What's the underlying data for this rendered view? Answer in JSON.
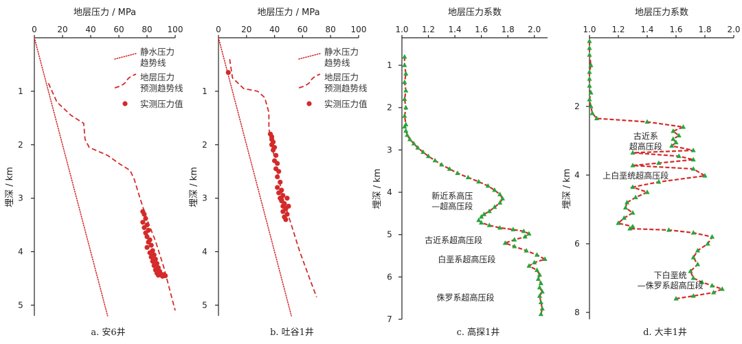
{
  "colors": {
    "curve": "#d42a2a",
    "marker": "#27a63a",
    "point": "#d42a2a",
    "axis": "#222222"
  },
  "legend": {
    "hydro": [
      "静水压力",
      "趋势线"
    ],
    "formation": [
      "地层压力",
      "预测趋势线"
    ],
    "measured": "实测压力值"
  },
  "chart_data": [
    {
      "type": "line",
      "caption": "a. 安6井",
      "xlabel": "地层压力 / MPa",
      "ylabel": "埋深 / km",
      "xlim": [
        0,
        100
      ],
      "ylim": [
        0,
        5.2
      ],
      "x_ticks": [
        "0",
        "20",
        "40",
        "60",
        "80",
        "100"
      ],
      "y_ticks": [
        "1",
        "2",
        "3",
        "4",
        "5"
      ],
      "x_tick_values": [
        0,
        20,
        40,
        60,
        80,
        100
      ],
      "y_tick_values": [
        1,
        2,
        3,
        4,
        5
      ],
      "series": [
        {
          "name": "静水压力趋势线",
          "style": "dotted",
          "x": [
            0,
            52
          ],
          "y": [
            0,
            5.2
          ]
        },
        {
          "name": "地层压力预测趋势线",
          "style": "dashed",
          "x": [
            10,
            16,
            26,
            35,
            36,
            39,
            52,
            60,
            68,
            71,
            75,
            80,
            86,
            92,
            97,
            100
          ],
          "y": [
            0.85,
            1.2,
            1.45,
            1.6,
            1.9,
            2.05,
            2.2,
            2.35,
            2.48,
            2.65,
            3.0,
            3.4,
            3.8,
            4.3,
            4.8,
            5.1
          ]
        },
        {
          "name": "实测压力值",
          "style": "points",
          "x": [
            77,
            78,
            79,
            77,
            80,
            78,
            81,
            79,
            80,
            82,
            81,
            83,
            80,
            84,
            82,
            85,
            83,
            86,
            84,
            87,
            85,
            88,
            86,
            89,
            87,
            90,
            88,
            91,
            92,
            93
          ],
          "y": [
            3.25,
            3.3,
            3.38,
            3.45,
            3.5,
            3.55,
            3.6,
            3.65,
            3.72,
            3.78,
            3.82,
            3.88,
            3.92,
            3.98,
            4.02,
            4.06,
            4.1,
            4.14,
            4.18,
            4.22,
            4.26,
            4.3,
            4.34,
            4.37,
            4.4,
            4.42,
            4.44,
            4.46,
            4.43,
            4.45
          ]
        }
      ]
    },
    {
      "type": "line",
      "caption": "b. 吐谷1井",
      "xlabel": "地层压力 / MPa",
      "ylabel": "埋深 / km",
      "xlim": [
        0,
        100
      ],
      "ylim": [
        0,
        5.2
      ],
      "x_ticks": [
        "0",
        "20",
        "40",
        "60",
        "80",
        "100"
      ],
      "y_ticks": [
        "1",
        "2",
        "3",
        "4",
        "5"
      ],
      "x_tick_values": [
        0,
        20,
        40,
        60,
        80,
        100
      ],
      "y_tick_values": [
        1,
        2,
        3,
        4,
        5
      ],
      "series": [
        {
          "name": "静水压力趋势线",
          "style": "dotted",
          "x": [
            0,
            52
          ],
          "y": [
            0,
            5.2
          ]
        },
        {
          "name": "地层压力预测趋势线",
          "style": "dashed",
          "x": [
            8,
            10,
            18,
            28,
            33,
            36,
            36,
            38,
            42,
            46,
            52,
            58,
            65,
            70
          ],
          "y": [
            0.4,
            0.75,
            0.95,
            1.0,
            1.12,
            1.4,
            1.7,
            2.0,
            2.5,
            3.0,
            3.5,
            4.0,
            4.5,
            4.85
          ]
        },
        {
          "name": "实测压力值",
          "style": "points",
          "x": [
            7,
            37,
            38,
            38,
            39,
            38,
            40,
            39,
            41,
            40,
            42,
            41,
            43,
            42,
            44,
            42,
            45,
            43,
            46,
            44,
            45,
            47,
            46,
            48,
            46,
            49,
            47,
            48,
            50,
            49
          ],
          "y": [
            0.65,
            1.8,
            1.85,
            1.9,
            1.95,
            2.0,
            2.05,
            2.1,
            2.2,
            2.3,
            2.35,
            2.45,
            2.5,
            2.6,
            2.7,
            2.8,
            2.85,
            2.9,
            2.95,
            3.0,
            3.05,
            3.1,
            3.15,
            3.2,
            3.25,
            3.3,
            3.35,
            3.4,
            3.15,
            3.0
          ]
        }
      ]
    },
    {
      "type": "line",
      "caption": "c. 高探1井",
      "xlabel": "地层压力系数",
      "ylabel": "埋深 / km",
      "xlim": [
        1.0,
        2.1
      ],
      "ylim": [
        0.35,
        7.0
      ],
      "x_ticks": [
        "1.0",
        "1.2",
        "1.4",
        "1.6",
        "1.8",
        "2.0"
      ],
      "y_ticks": [
        "1",
        "2",
        "3",
        "4",
        "5",
        "6",
        "7"
      ],
      "x_tick_values": [
        1.0,
        1.2,
        1.4,
        1.6,
        1.8,
        2.0
      ],
      "y_tick_values": [
        1,
        2,
        3,
        4,
        5,
        6,
        7
      ],
      "series": [
        {
          "name": "地层压力系数",
          "style": "dashed-marked",
          "x": [
            1.02,
            1.02,
            1.03,
            1.02,
            1.03,
            1.02,
            1.03,
            1.02,
            1.03,
            1.02,
            1.03,
            1.04,
            1.06,
            1.09,
            1.12,
            1.16,
            1.2,
            1.25,
            1.3,
            1.36,
            1.42,
            1.5,
            1.58,
            1.65,
            1.7,
            1.74,
            1.76,
            1.74,
            1.7,
            1.66,
            1.62,
            1.6,
            1.58,
            1.6,
            1.66,
            1.74,
            1.84,
            1.92,
            1.96,
            1.93,
            1.85,
            1.78,
            1.85,
            1.94,
            2.02,
            2.08,
            2.0,
            1.96,
            2.02,
            2.04,
            2.03,
            2.05,
            2.04,
            2.06,
            2.04,
            2.05,
            2.06,
            2.05
          ],
          "y": [
            0.8,
            1.0,
            1.2,
            1.4,
            1.6,
            1.8,
            2.0,
            2.2,
            2.4,
            2.45,
            2.55,
            2.65,
            2.75,
            2.85,
            2.95,
            3.05,
            3.15,
            3.25,
            3.35,
            3.45,
            3.55,
            3.65,
            3.75,
            3.85,
            3.95,
            4.05,
            4.15,
            4.25,
            4.35,
            4.45,
            4.52,
            4.58,
            4.66,
            4.72,
            4.78,
            4.84,
            4.88,
            4.92,
            4.98,
            5.05,
            5.12,
            5.2,
            5.28,
            5.38,
            5.48,
            5.58,
            5.66,
            5.74,
            5.84,
            5.95,
            6.05,
            6.15,
            6.25,
            6.35,
            6.45,
            6.6,
            6.75,
            6.88
          ]
        }
      ],
      "annotations": [
        {
          "lines": [
            "新近系高压",
            "—超高压段"
          ],
          "x": 1.38,
          "y": 4.15
        },
        {
          "lines": [
            "古近系超高压段"
          ],
          "x": 1.39,
          "y": 5.2
        },
        {
          "lines": [
            "白垩系超高压段"
          ],
          "x": 1.49,
          "y": 5.65
        },
        {
          "lines": [
            "侏罗系超高压段"
          ],
          "x": 1.48,
          "y": 6.55
        }
      ]
    },
    {
      "type": "line",
      "caption": "d. 大丰1井",
      "xlabel": "地层压力系数",
      "ylabel": "埋深 / km",
      "xlim": [
        1.0,
        2.0
      ],
      "ylim": [
        0.0,
        8.2
      ],
      "x_ticks": [
        "1.0",
        "1.2",
        "1.4",
        "1.6",
        "1.8",
        "2.0"
      ],
      "y_ticks": [
        "2",
        "4",
        "6",
        "8"
      ],
      "x_tick_values": [
        1.0,
        1.2,
        1.4,
        1.6,
        1.8,
        2.0
      ],
      "y_tick_values": [
        2,
        4,
        6,
        8
      ],
      "series": [
        {
          "name": "地层压力系数",
          "style": "dashed-marked",
          "x": [
            1.0,
            1.0,
            1.0,
            1.01,
            1.0,
            1.0,
            1.0,
            1.01,
            1.0,
            1.01,
            1.02,
            1.05,
            1.4,
            1.65,
            1.58,
            1.62,
            1.58,
            1.6,
            1.57,
            1.72,
            1.3,
            1.62,
            1.72,
            1.48,
            1.3,
            1.72,
            1.8,
            1.48,
            1.3,
            1.4,
            1.32,
            1.26,
            1.25,
            1.3,
            1.24,
            1.2,
            1.3,
            1.28,
            1.55,
            1.72,
            1.85,
            1.82,
            1.75,
            1.72,
            1.75,
            1.7,
            1.72,
            1.78,
            1.85,
            1.92,
            1.86,
            1.72,
            1.6
          ],
          "y": [
            0.1,
            0.3,
            0.5,
            0.8,
            1.0,
            1.2,
            1.4,
            1.6,
            1.8,
            2.0,
            2.2,
            2.35,
            2.45,
            2.6,
            2.72,
            2.85,
            2.95,
            3.05,
            3.15,
            3.28,
            3.35,
            3.45,
            3.55,
            3.65,
            3.72,
            3.82,
            4.02,
            4.2,
            4.35,
            4.5,
            4.65,
            4.8,
            4.95,
            5.1,
            5.25,
            5.4,
            5.5,
            5.56,
            5.6,
            5.68,
            5.8,
            6.0,
            6.2,
            6.4,
            6.6,
            6.8,
            7.0,
            7.12,
            7.22,
            7.32,
            7.42,
            7.52,
            7.6
          ]
        }
      ],
      "annotations": [
        {
          "lines": [
            "古近系",
            "超高压段"
          ],
          "x": 1.39,
          "y": 2.95
        },
        {
          "lines": [
            "上白垩统超高压段"
          ],
          "x": 1.32,
          "y": 4.1
        },
        {
          "lines": [
            "下白垩统",
            "—侏罗系超高压段"
          ],
          "x": 1.56,
          "y": 7.0
        }
      ]
    }
  ]
}
